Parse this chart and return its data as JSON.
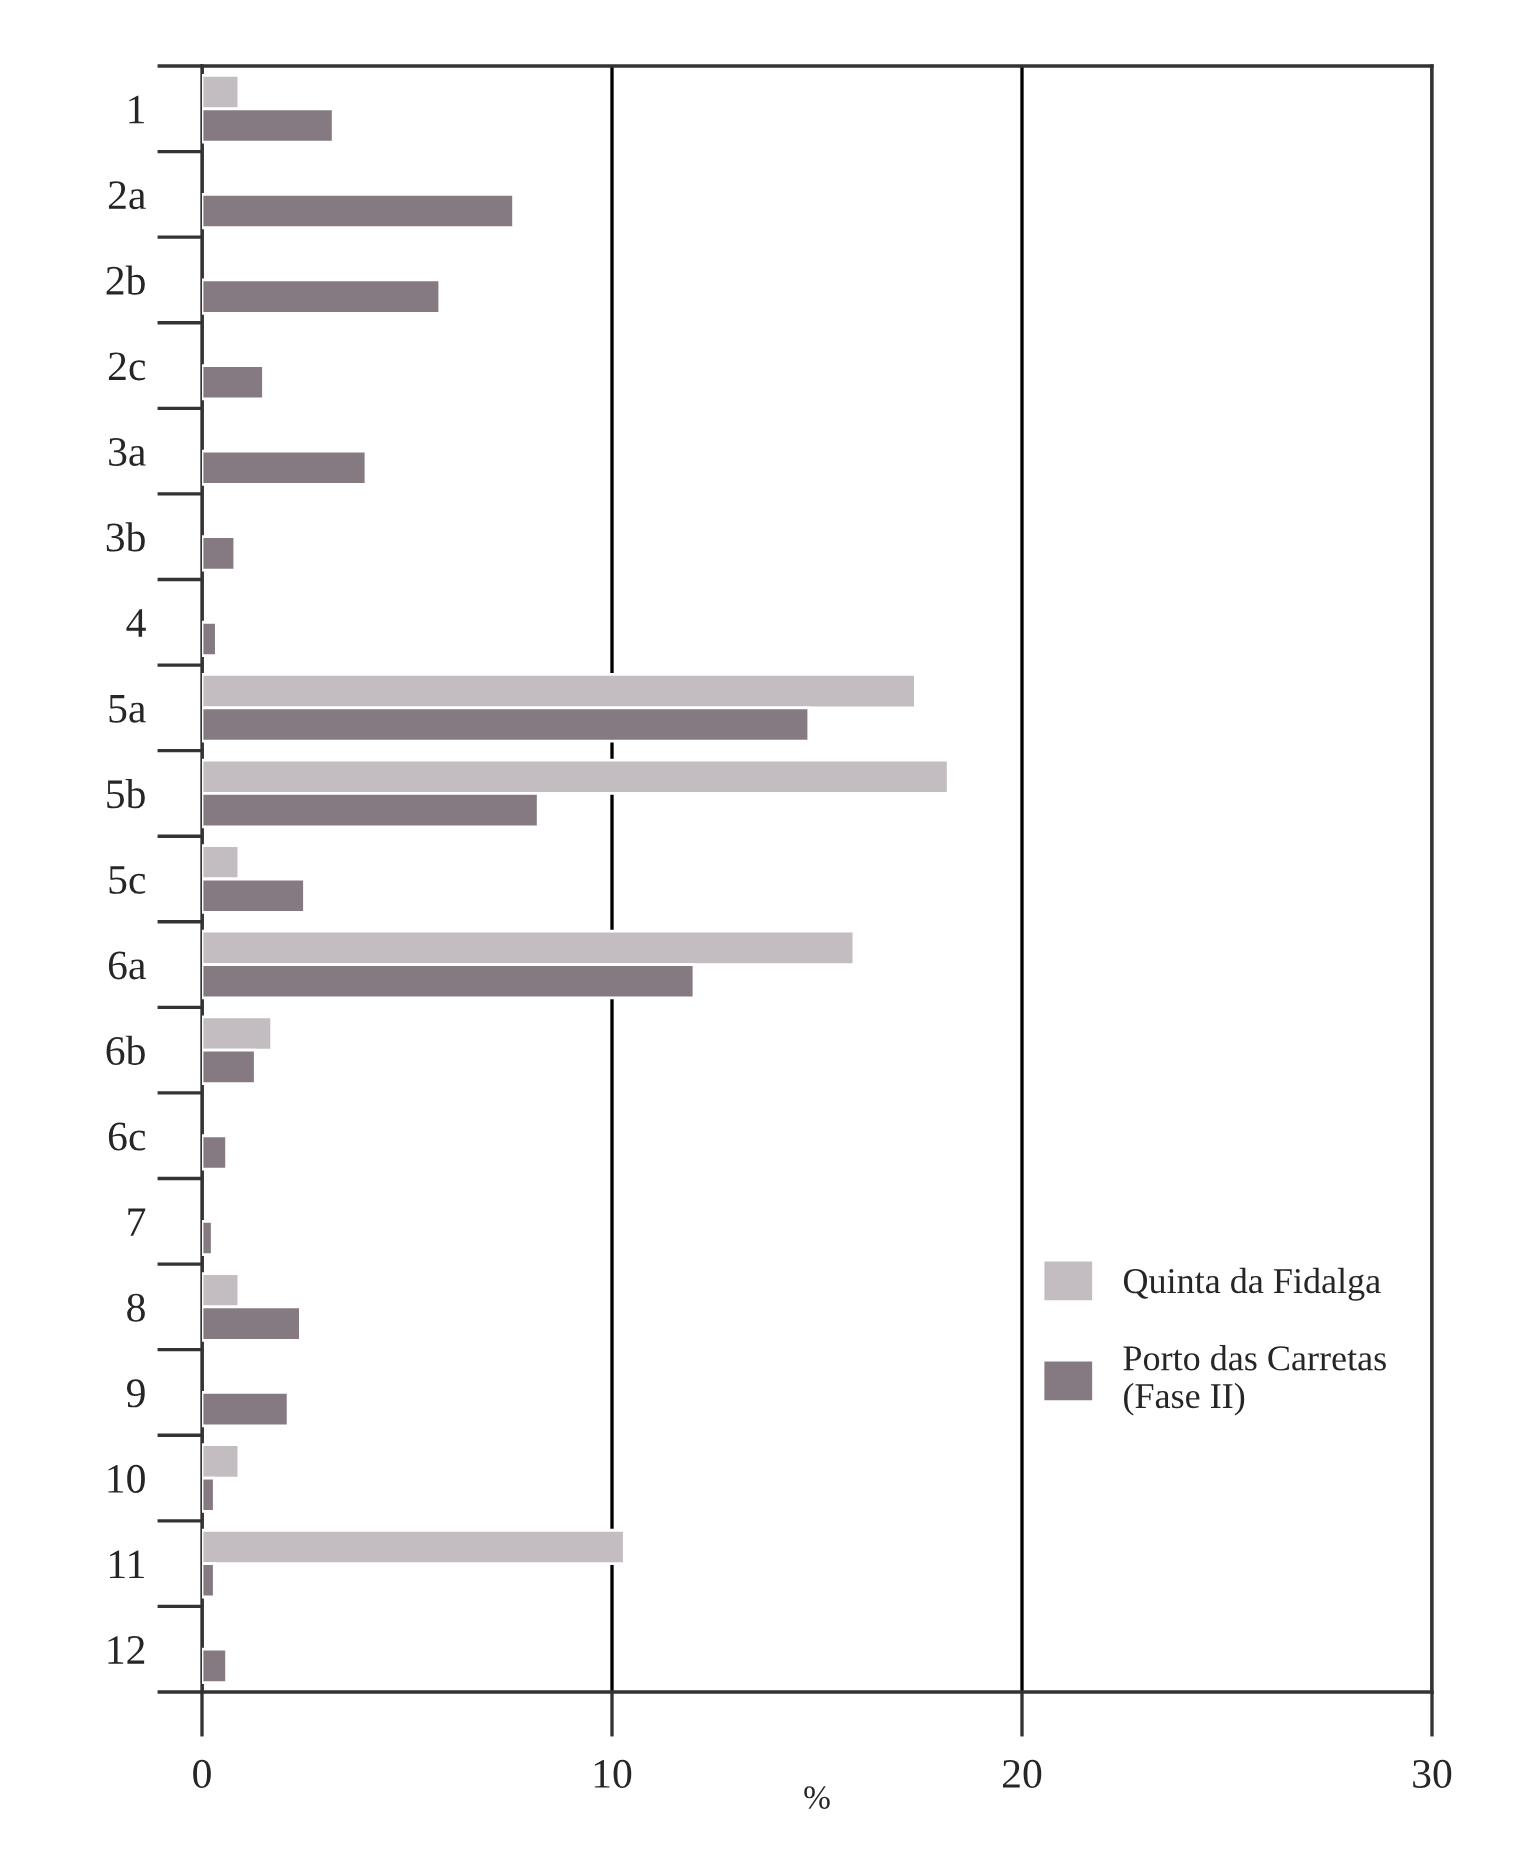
{
  "chart_data": {
    "type": "bar",
    "orientation": "horizontal",
    "xlabel": "%",
    "categories": [
      "1",
      "2a",
      "2b",
      "2c",
      "3a",
      "3b",
      "4",
      "5a",
      "5b",
      "5c",
      "6a",
      "6b",
      "6c",
      "7",
      "8",
      "9",
      "10",
      "11",
      "12"
    ],
    "series": [
      {
        "name": "Quinta da Fidalga",
        "color": "#c3bdc1",
        "values": [
          0.9,
          null,
          null,
          null,
          null,
          null,
          null,
          17.4,
          18.2,
          0.9,
          15.9,
          1.7,
          null,
          null,
          0.9,
          null,
          0.9,
          10.3,
          null
        ]
      },
      {
        "name": "Porto das Carretas\n(Fase II)",
        "color": "#857a82",
        "values": [
          3.2,
          7.6,
          5.8,
          1.5,
          4.0,
          0.8,
          0.35,
          14.8,
          8.2,
          2.5,
          12.0,
          1.3,
          0.6,
          0.25,
          2.4,
          2.1,
          0.3,
          0.3,
          0.6
        ]
      }
    ],
    "xlim": [
      0,
      30
    ],
    "xticks": [
      0,
      10,
      20,
      30
    ],
    "grid": "x",
    "legend": "lower right"
  }
}
